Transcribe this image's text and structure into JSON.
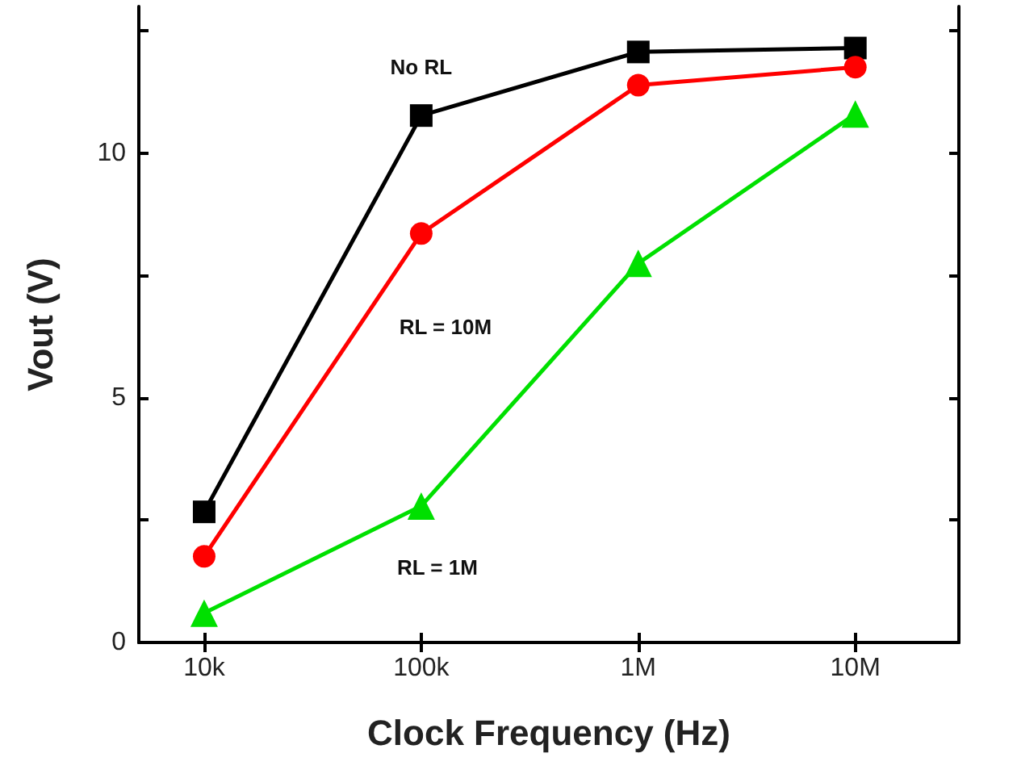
{
  "chart_data": {
    "type": "line",
    "xlabel": "Clock Frequency (Hz)",
    "ylabel": "Vout (V)",
    "log": "x",
    "x": [
      10000,
      100000,
      1000000,
      10000000
    ],
    "xlim": [
      5000,
      30000000
    ],
    "xticks": [
      {
        "value": 10000,
        "label": "10k"
      },
      {
        "value": 100000,
        "label": "100k"
      },
      {
        "value": 1000000,
        "label": "1M"
      },
      {
        "value": 10000000,
        "label": "10M"
      }
    ],
    "ylim": [
      0,
      13
    ],
    "yticks": [
      0,
      {
        "value": 2.5,
        "label": null
      },
      5,
      {
        "value": 7.5,
        "label": null
      },
      10,
      {
        "value": 12.5,
        "label": null
      }
    ],
    "series": [
      {
        "name": "No RL",
        "color": "#000000",
        "marker": "square",
        "values": [
          2.67,
          10.77,
          12.07,
          12.15
        ]
      },
      {
        "name": "RL = 10M",
        "color": "#ff0000",
        "marker": "circle",
        "values": [
          1.76,
          8.36,
          11.39,
          11.76
        ]
      },
      {
        "name": "RL = 1M",
        "color": "#00e000",
        "marker": "triangle",
        "values": [
          0.6,
          2.79,
          7.75,
          10.8
        ]
      }
    ],
    "grid": false,
    "legend": false,
    "line_style": "solid"
  }
}
